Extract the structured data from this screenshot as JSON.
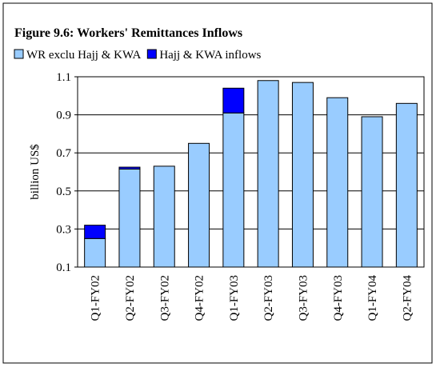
{
  "chart_data": {
    "type": "stacked_bar",
    "title": "Figure 9.6: Workers' Remittances Inflows",
    "y_label": "billion US$",
    "categories": [
      "Q1-FY02",
      "Q2-FY02",
      "Q3-FY02",
      "Q4-FY02",
      "Q1-FY03",
      "Q2-FY03",
      "Q3-FY03",
      "Q4-FY03",
      "Q1-FY04",
      "Q2-FY04"
    ],
    "series": [
      {
        "name": "WR exclu Hajj & KWA",
        "color": "#99ccff",
        "values": [
          0.25,
          0.615,
          0.63,
          0.75,
          0.91,
          1.08,
          1.07,
          0.99,
          0.89,
          0.96
        ]
      },
      {
        "name": "Hajj & KWA inflows",
        "color": "#0000ff",
        "values": [
          0.07,
          0.01,
          0,
          0,
          0.13,
          0,
          0,
          0,
          0,
          0
        ]
      }
    ],
    "ylim": [
      0.1,
      1.1
    ],
    "yticks": [
      0.1,
      0.3,
      0.5,
      0.7,
      0.9,
      1.1
    ],
    "grid": true,
    "legend": "top-left"
  }
}
